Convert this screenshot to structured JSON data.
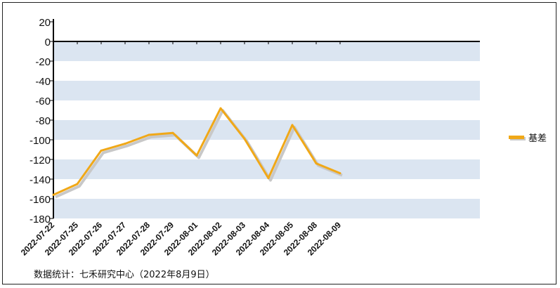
{
  "chart_data": {
    "type": "line",
    "categories": [
      "2022-07-22",
      "2022-07-25",
      "2022-07-26",
      "2022-07-27",
      "2022-07-28",
      "2022-07-29",
      "2022-08-01",
      "2022-08-02",
      "2022-08-03",
      "2022-08-04",
      "2022-08-05",
      "2022-08-08",
      "2022-08-09"
    ],
    "series": [
      {
        "name": "基差",
        "values": [
          -156,
          -145,
          -111,
          -104,
          -95,
          -93,
          -116,
          -68,
          -99,
          -139,
          -85,
          -124,
          -134
        ],
        "color": "#f0a818"
      }
    ],
    "ylim": [
      -180,
      20
    ],
    "yticks": [
      20,
      0,
      -20,
      -40,
      -60,
      -80,
      -100,
      -120,
      -140,
      -160,
      -180
    ],
    "legend_position": "right",
    "band_color": "#dbe5f1",
    "shadow_color": "#c8c8c8"
  },
  "source_note": "数据统计：七禾研究中心（2022年8月9日）"
}
